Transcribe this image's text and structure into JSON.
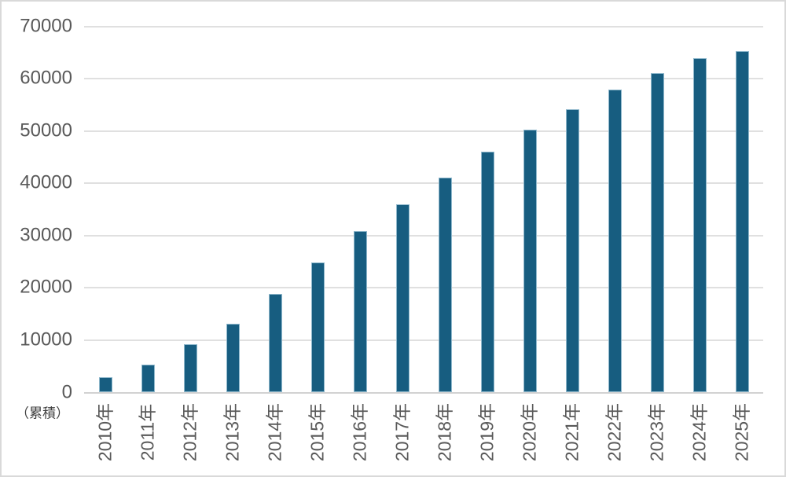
{
  "chart_data": {
    "type": "bar",
    "title": "",
    "categories": [
      "2010年",
      "2011年",
      "2012年",
      "2013年",
      "2014年",
      "2015年",
      "2016年",
      "2017年",
      "2018年",
      "2019年",
      "2020年",
      "2021年",
      "2022年",
      "2023年",
      "2024年",
      "2025年"
    ],
    "values": [
      3000,
      5300,
      9200,
      13200,
      18900,
      24800,
      30800,
      36000,
      41100,
      46000,
      50300,
      54100,
      57900,
      61000,
      63900,
      65300
    ],
    "yticks": [
      0,
      10000,
      20000,
      30000,
      40000,
      50000,
      60000,
      70000
    ],
    "ylim": [
      0,
      70000
    ],
    "xlabel": "",
    "ylabel": "（累積）",
    "grid": true,
    "legend_position": "none",
    "bar_color": "#175D80",
    "bar_edge_color": "#8FB8CC",
    "gridline_color": "#E0E0E0",
    "axis_line_color": "#D2D2D2",
    "tick_label_color": "#595959",
    "note_color": "#3F3F3F",
    "canvas_border_color": "#D9D9D9"
  }
}
